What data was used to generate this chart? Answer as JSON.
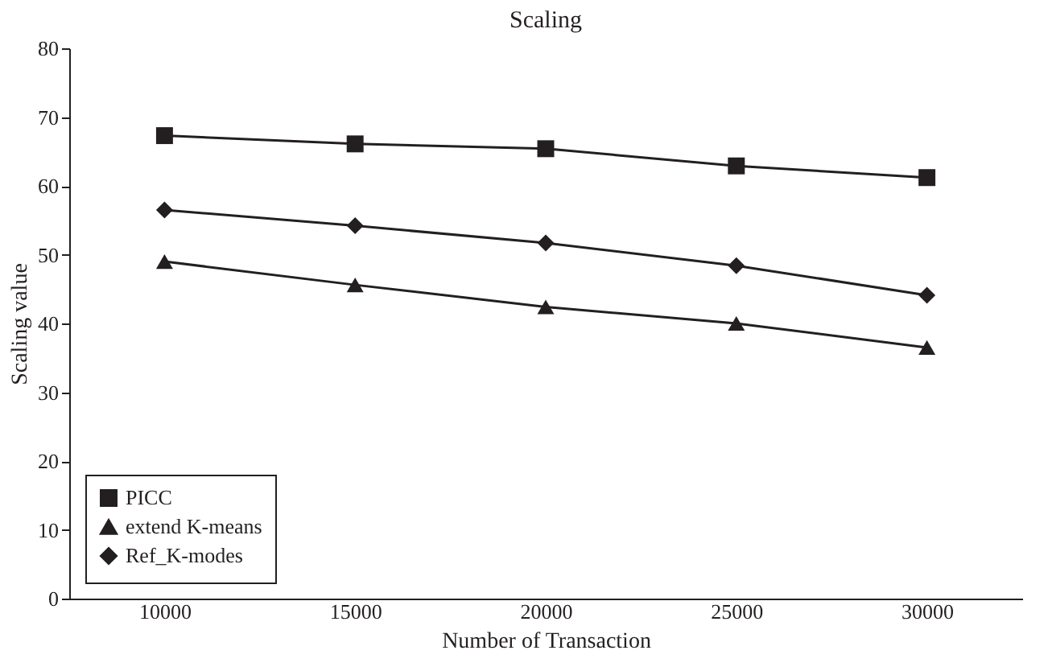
{
  "chart_data": {
    "type": "line",
    "title": "Scaling",
    "xlabel": "Number of Transaction",
    "ylabel": "Scaling value",
    "categories": [
      "10000",
      "15000",
      "20000",
      "25000",
      "30000"
    ],
    "series": [
      {
        "name": "PICC",
        "color": "#231f20",
        "marker": "square",
        "values": [
          67.3,
          66.1,
          65.4,
          62.9,
          61.2
        ]
      },
      {
        "name": "extend K-means",
        "color": "#231f20",
        "marker": "triangle",
        "values": [
          49,
          45.6,
          42.4,
          40,
          36.5
        ]
      },
      {
        "name": "Ref_K-modes",
        "color": "#231f20",
        "marker": "diamond",
        "values": [
          56.5,
          54.2,
          51.7,
          48.4,
          44.1
        ]
      }
    ],
    "ylim": [
      0,
      80
    ],
    "yticks": [
      0,
      10,
      20,
      30,
      40,
      50,
      60,
      70,
      80
    ],
    "grid": false,
    "legend": "bottom left",
    "line_style": "solid"
  }
}
